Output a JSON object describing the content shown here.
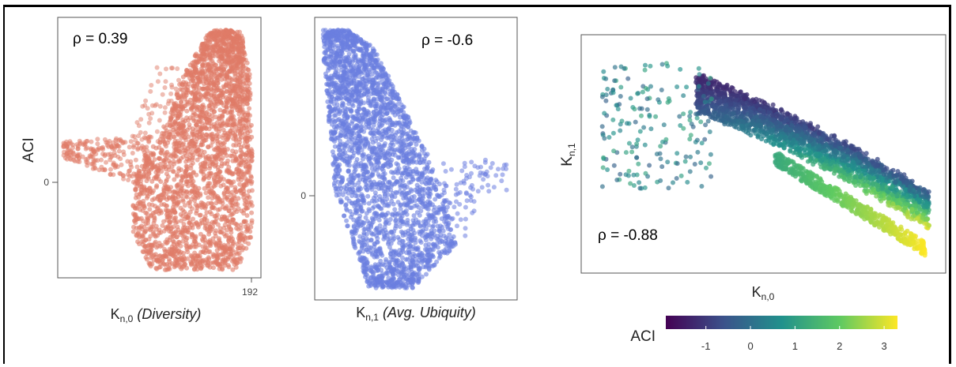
{
  "chart_data": [
    {
      "type": "scatter",
      "ylabel": "ACI",
      "xlabel": "K",
      "xlabel_sub": "n,0",
      "xlabel_note": "(Diversity)",
      "annotation": "ρ = 0.39",
      "x_tick_labels": [
        "192"
      ],
      "y_tick_labels": [
        "0"
      ],
      "color": "#e07b68"
    },
    {
      "type": "scatter",
      "xlabel": "K",
      "xlabel_sub": "n,1",
      "xlabel_note": "(Avg. Ubiquity)",
      "annotation": "ρ = -0.6",
      "y_tick_labels": [
        "0"
      ],
      "color": "#6b7ee0"
    },
    {
      "type": "scatter",
      "xlabel": "K",
      "xlabel_sub": "n,0",
      "ylabel": "K",
      "ylabel_sub": "n,1",
      "annotation": "ρ = -0.88",
      "color_scale": {
        "title": "ACI",
        "colormap": "viridis",
        "range": [
          -1.9,
          3.3
        ],
        "ticks": [
          "-1",
          "0",
          "1",
          "2",
          "3"
        ],
        "colors": [
          "#440154",
          "#3b528b",
          "#21918c",
          "#5ec962",
          "#fde725"
        ]
      }
    }
  ]
}
